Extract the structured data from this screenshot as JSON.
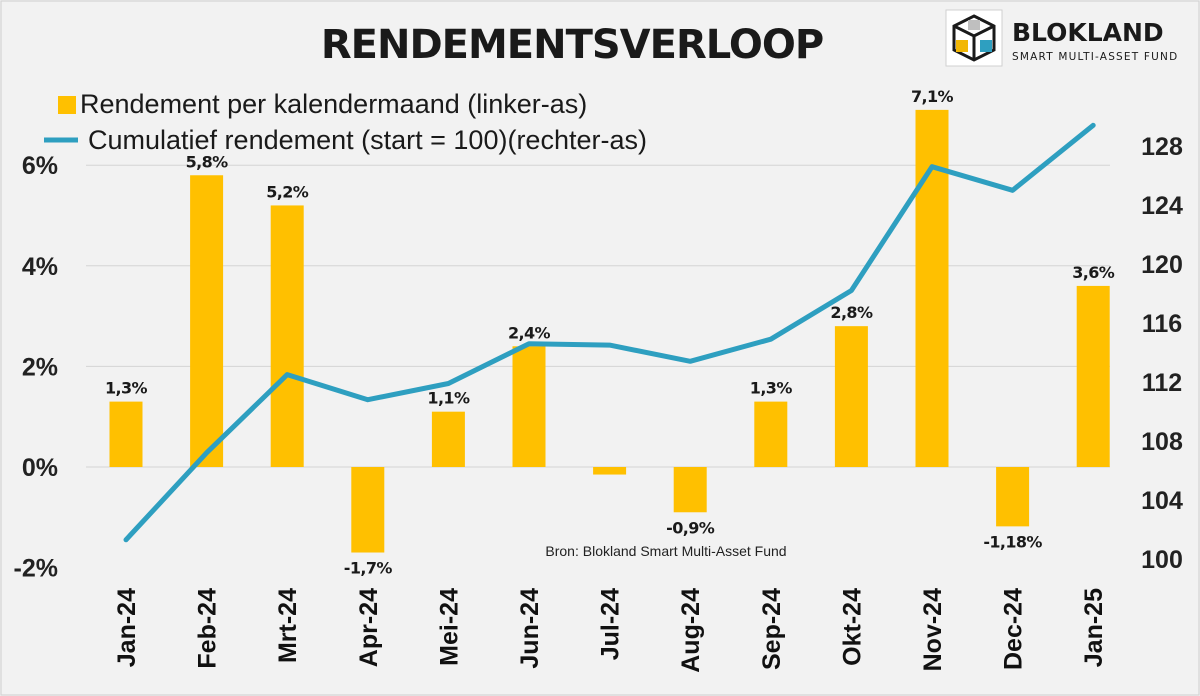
{
  "chart_data": {
    "type": "bar+line",
    "title": "RENDEMENTSVERLOOP",
    "categories": [
      "Jan-24",
      "Feb-24",
      "Mrt-24",
      "Apr-24",
      "Mei-24",
      "Jun-24",
      "Jul-24",
      "Aug-24",
      "Sep-24",
      "Okt-24",
      "Nov-24",
      "Dec-24",
      "Jan-25"
    ],
    "series": [
      {
        "name": "Rendement per kalendermaand (linker-as)",
        "type": "bar",
        "axis": "left",
        "color": "#FFC000",
        "values": [
          1.3,
          5.8,
          5.2,
          -1.7,
          1.1,
          2.4,
          -0.15,
          -0.9,
          1.3,
          2.8,
          7.1,
          -1.18,
          3.6
        ],
        "data_labels": [
          "1,3%",
          "5,8%",
          "5,2%",
          "-1,7%",
          "1,1%",
          "2,4%",
          "",
          "-0,9%",
          "1,3%",
          "2,8%",
          "7,1%",
          "-1,18%",
          "3,6%"
        ]
      },
      {
        "name": "Cumulatief rendement (start = 100)(rechter-as)",
        "type": "line",
        "axis": "right",
        "color": "#2E9FC0",
        "values": [
          101.3,
          107.2,
          112.5,
          110.8,
          111.9,
          114.6,
          114.5,
          113.4,
          114.9,
          118.2,
          126.6,
          125.0,
          129.4
        ]
      }
    ],
    "y_left": {
      "ylim": [
        -2,
        8
      ],
      "ticks": [
        -2,
        0,
        2,
        4,
        6
      ],
      "tick_labels": [
        "-2%",
        "0%",
        "2%",
        "4%",
        "6%"
      ]
    },
    "y_right": {
      "ylim": [
        100,
        132
      ],
      "ticks": [
        100,
        104,
        108,
        112,
        116,
        120,
        124,
        128
      ],
      "tick_labels": [
        "100",
        "104",
        "108",
        "112",
        "116",
        "120",
        "124",
        "128"
      ]
    },
    "grid": true,
    "legend_placement": "top-left",
    "source_note": "Bron: Blokland Smart Multi-Asset Fund"
  },
  "brand": {
    "name": "BLOKLAND",
    "tagline": "SMART MULTI-ASSET FUND",
    "logo_icon": "stacked-cubes-icon",
    "colors": [
      "#F2B705",
      "#2E9FC0",
      "#E8E8E8"
    ]
  }
}
